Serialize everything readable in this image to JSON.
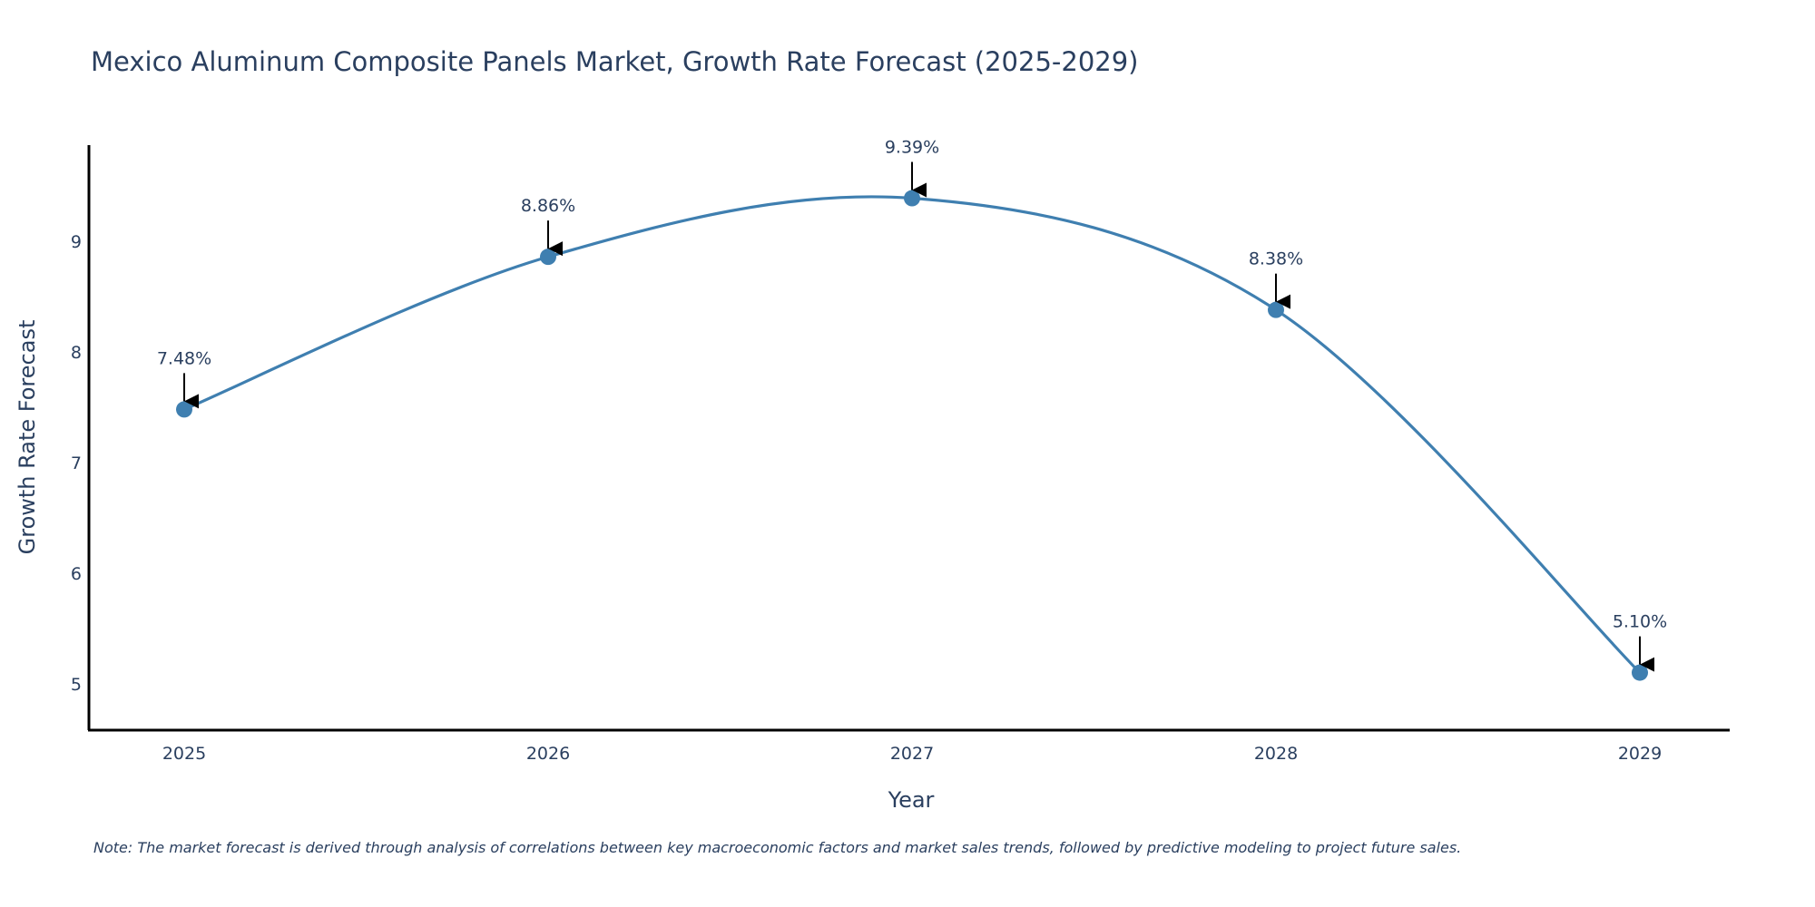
{
  "chart_data": {
    "type": "line",
    "title": "Mexico Aluminum Composite Panels Market, Growth Rate Forecast (2025-2029)",
    "xlabel": "Year",
    "ylabel": "Growth Rate Forecast",
    "categories": [
      "2025",
      "2026",
      "2027",
      "2028",
      "2029"
    ],
    "series": [
      {
        "name": "Growth Rate Forecast",
        "values": [
          7.48,
          8.86,
          9.39,
          8.38,
          5.1
        ],
        "labels": [
          "7.48%",
          "8.86%",
          "9.39%",
          "8.38%",
          "5.10%"
        ],
        "color": "#3f7fb0"
      }
    ],
    "yticks": [
      5,
      6,
      7,
      8,
      9
    ],
    "ytick_labels": [
      "5",
      "6",
      "7",
      "8",
      "9"
    ],
    "ylim": [
      4.58,
      9.87
    ],
    "grid": false,
    "line_shape": "spline",
    "axis_color": "#000000",
    "text_color": "#2a3f5f",
    "note": "Note: The market forecast is derived through analysis of correlations between key macroeconomic factors and market sales trends, followed by predictive modeling to project future sales."
  }
}
